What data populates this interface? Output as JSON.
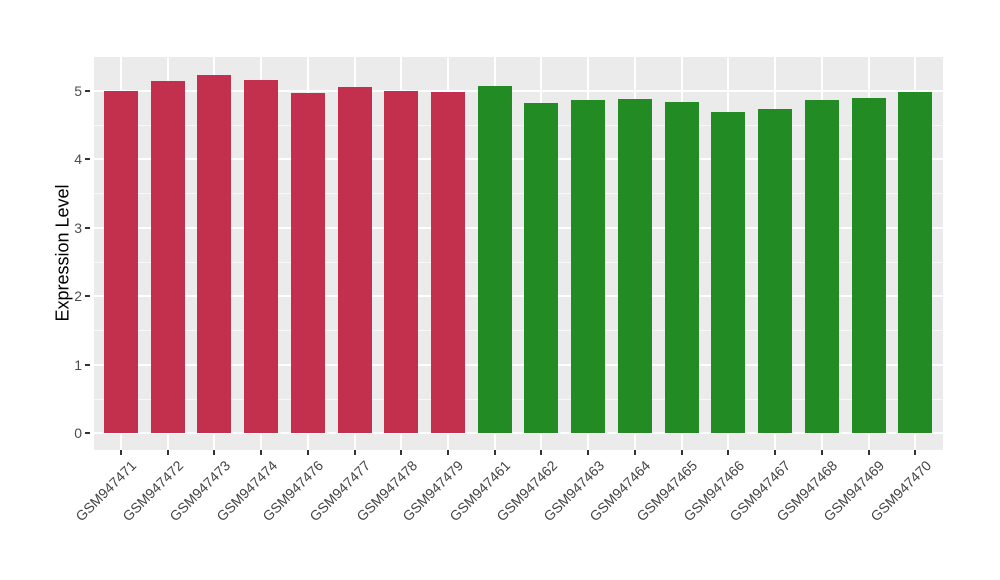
{
  "chart_data": {
    "type": "bar",
    "title": "",
    "xlabel": "",
    "ylabel": "Expression Level",
    "ylim": [
      0,
      5.5
    ],
    "yticks": [
      0,
      1,
      2,
      3,
      4,
      5
    ],
    "grid": "white major and minor horizontal gridlines plus vertical category gridlines on gray panel",
    "legend_position": "none",
    "categories": [
      "GSM947471",
      "GSM947472",
      "GSM947473",
      "GSM947474",
      "GSM947476",
      "GSM947477",
      "GSM947478",
      "GSM947479",
      "GSM947461",
      "GSM947462",
      "GSM947463",
      "GSM947464",
      "GSM947465",
      "GSM947466",
      "GSM947467",
      "GSM947468",
      "GSM947469",
      "GSM947470"
    ],
    "values": [
      5.0,
      5.14,
      5.23,
      5.16,
      4.97,
      5.06,
      5.0,
      4.98,
      5.07,
      4.82,
      4.86,
      4.88,
      4.84,
      4.69,
      4.73,
      4.87,
      4.9,
      4.98
    ],
    "groups": [
      "group1",
      "group1",
      "group1",
      "group1",
      "group1",
      "group1",
      "group1",
      "group1",
      "group2",
      "group2",
      "group2",
      "group2",
      "group2",
      "group2",
      "group2",
      "group2",
      "group2",
      "group2"
    ]
  },
  "style": {
    "group_colors": {
      "group1": "#C3304E",
      "group2": "#238B23"
    },
    "panel_background": "#EBEBEB",
    "gridline_color": "#FFFFFF",
    "tick_color": "#333333",
    "tick_label_color": "#4D4D4D",
    "axis_title_color": "#000000"
  }
}
